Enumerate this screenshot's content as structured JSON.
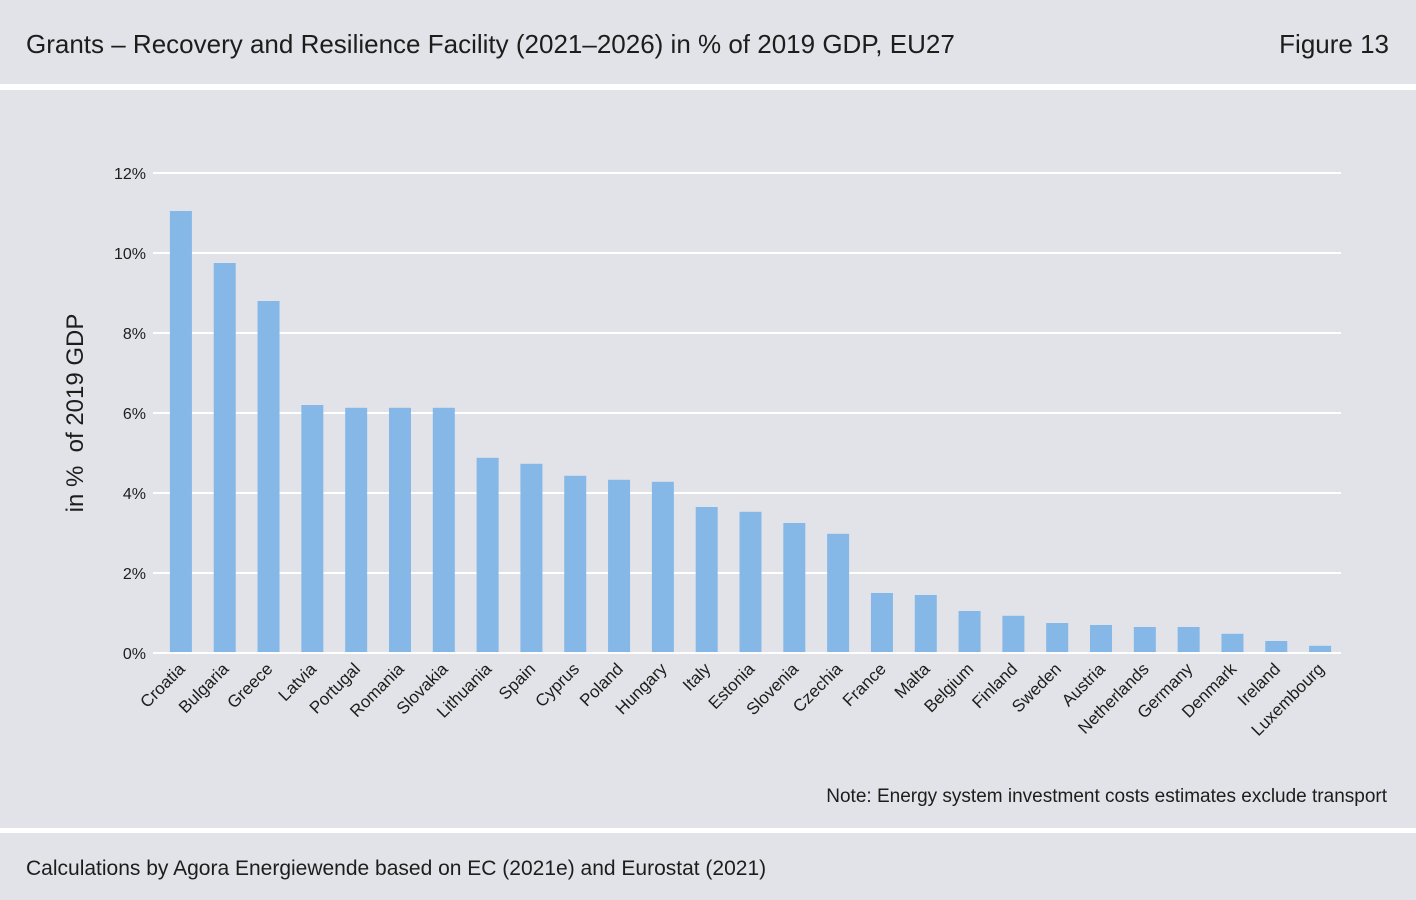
{
  "header": {
    "figure_label": "Figure 13"
  },
  "note": {
    "text": "Note: Energy system investment costs estimates exclude transport"
  },
  "footer": {
    "source": "Calculations by Agora Energiewende based on EC (2021e) and Eurostat (2021)"
  },
  "colors": {
    "panel_background": "#e2e3e8",
    "divider": "#ffffff",
    "bar": "#85b8e6",
    "gridline": "#ffffff",
    "text": "#1d1d1b"
  },
  "chart_data": {
    "type": "bar",
    "title": "Grants – Recovery and Resilience Facility (2021–2026) in % of 2019 GDP, EU27",
    "ylabel": "in %  of 2019 GDP",
    "categories": [
      "Croatia",
      "Bulgaria",
      "Greece",
      "Latvia",
      "Portugal",
      "Romania",
      "Slovakia",
      "Lithuania",
      "Spain",
      "Cyprus",
      "Poland",
      "Hungary",
      "Italy",
      "Estonia",
      "Slovenia",
      "Czechia",
      "France",
      "Malta",
      "Belgium",
      "Finland",
      "Sweden",
      "Austria",
      "Netherlands",
      "Germany",
      "Denmark",
      "Ireland",
      "Luxembourg"
    ],
    "values": [
      11.05,
      9.75,
      8.8,
      6.2,
      6.13,
      6.13,
      6.13,
      4.88,
      4.73,
      4.43,
      4.33,
      4.28,
      3.65,
      3.53,
      3.25,
      2.98,
      1.5,
      1.45,
      1.05,
      0.93,
      0.75,
      0.7,
      0.65,
      0.65,
      0.48,
      0.3,
      0.18
    ],
    "ylim": [
      0,
      12
    ],
    "yticks": [
      0,
      2,
      4,
      6,
      8,
      10,
      12
    ],
    "ytick_labels": [
      "0%",
      "2%",
      "4%",
      "6%",
      "8%",
      "10%",
      "12%"
    ],
    "grid": true
  }
}
